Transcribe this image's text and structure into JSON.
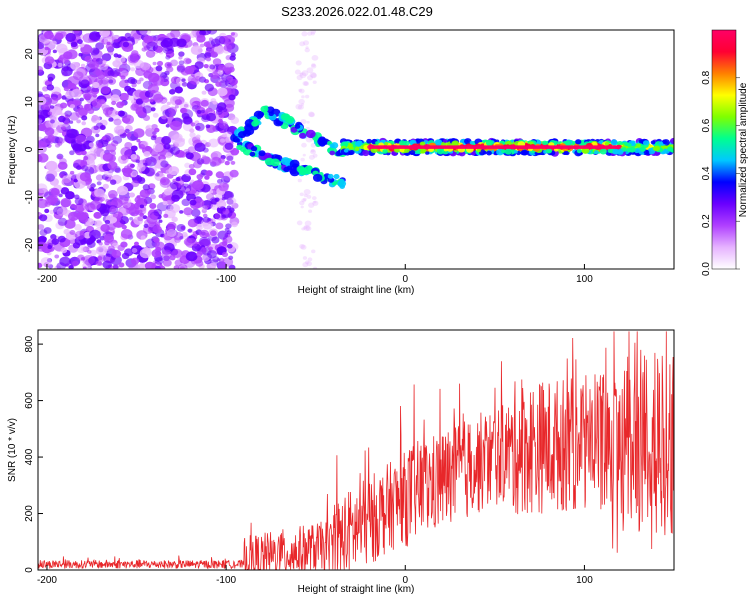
{
  "title": "S233.2026.022.01.48.C29",
  "colors": {
    "snr_line": "#e8272a",
    "axis": "#000000",
    "background": "#ffffff"
  },
  "chart_data": [
    {
      "type": "heatmap",
      "name": "spectrogram",
      "xlabel": "Height of straight line (km)",
      "ylabel": "Frequency (Hz)",
      "xlim": [
        -205,
        150
      ],
      "ylim": [
        -25,
        25
      ],
      "xticks": [
        -200,
        -100,
        0,
        100
      ],
      "yticks": [
        -20,
        -10,
        0,
        10,
        20
      ],
      "colorbar": {
        "label": "Normalized spectral amplitude",
        "range": [
          0,
          1
        ],
        "ticks": [
          0.0,
          0.2,
          0.4,
          0.6,
          0.8
        ],
        "stops": [
          "#ffffff",
          "#e6b3ff",
          "#b040ff",
          "#6a00ff",
          "#0000ff",
          "#00c8ff",
          "#00ff90",
          "#7fff00",
          "#ffff00",
          "#ff8000",
          "#ff0033",
          "#ff0066"
        ]
      },
      "description_regions": {
        "noise_x_range": [
          -205,
          -95
        ],
        "band_center_freq": 0.5
      }
    },
    {
      "type": "line",
      "name": "snr",
      "xlabel": "Height of straight line (km)",
      "ylabel": "SNR (10 * v/v)",
      "xlim": [
        -205,
        150
      ],
      "ylim": [
        0,
        850
      ],
      "xticks": [
        -200,
        -100,
        0,
        100
      ],
      "yticks": [
        0,
        200,
        400,
        600,
        800
      ],
      "series": [
        {
          "name": "SNR",
          "color": "#e8272a"
        }
      ]
    }
  ],
  "text": {
    "h_xlabel": "Height of straight line (km)",
    "h_ylabel": "Frequency (Hz)",
    "cb_label": "Normalized spectral amplitude",
    "l_xlabel": "Height of straight line (km)",
    "l_ylabel": "SNR (10 * v/v)"
  }
}
